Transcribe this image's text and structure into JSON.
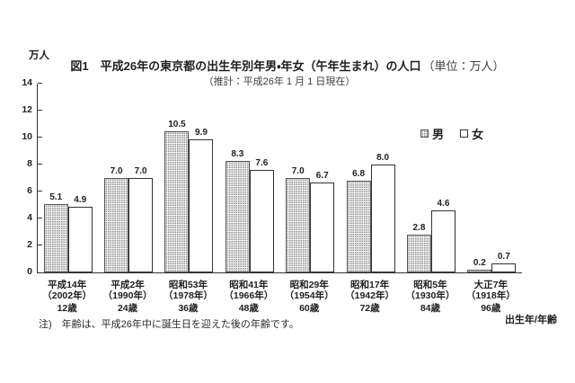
{
  "page": {
    "unit_label": "万人",
    "note": "注)　年齢は、平成26年中に誕生日を迎えた後の年齢です。",
    "x_axis_title": "出生年/年齢"
  },
  "title": {
    "figure_label": "図1",
    "main": "平成26年の東京都の出生年別年男・年女（午年生まれ）の人口",
    "unit": "（単位：万人）",
    "subtitle": "（推計：平成26年 1 月 1 日現在）"
  },
  "legend": {
    "male_label": "男",
    "female_label": "女"
  },
  "colors": {
    "text": "#1f1f1f",
    "axis": "#333333",
    "male_bar_fill": "#f3f3f3",
    "male_bar_dot": "#8f8f8f",
    "male_bar_border": "#555555",
    "female_bar_fill": "#ffffff",
    "female_bar_border": "#333333"
  },
  "chart_data": {
    "type": "bar",
    "title": "図1　平成26年の東京都の出生年別年男・年女（午年生まれ）の人口（単位：万人）",
    "subtitle": "（推計：平成26年 1 月 1 日現在）",
    "ylabel": "万人",
    "xlabel": "出生年/年齢",
    "ylim": [
      0,
      14
    ],
    "y_ticks": [
      0,
      2,
      4,
      6,
      8,
      10,
      12,
      14
    ],
    "grid": false,
    "legend_position": "upper-right",
    "value_labels": true,
    "categories": [
      {
        "era": "平成14年",
        "year": "（2002年）",
        "age": "12歳"
      },
      {
        "era": "平成2年",
        "year": "（1990年）",
        "age": "24歳"
      },
      {
        "era": "昭和53年",
        "year": "（1978年）",
        "age": "36歳"
      },
      {
        "era": "昭和41年",
        "year": "（1966年）",
        "age": "48歳"
      },
      {
        "era": "昭和29年",
        "year": "（1954年）",
        "age": "60歳"
      },
      {
        "era": "昭和17年",
        "year": "（1942年）",
        "age": "72歳"
      },
      {
        "era": "昭和5年",
        "year": "（1930年）",
        "age": "84歳"
      },
      {
        "era": "大正7年",
        "year": "（1918年）",
        "age": "96歳"
      }
    ],
    "series": [
      {
        "name": "男",
        "values": [
          5.1,
          7.0,
          10.5,
          8.3,
          7.0,
          6.8,
          2.8,
          0.2
        ]
      },
      {
        "name": "女",
        "values": [
          4.9,
          7.0,
          9.9,
          7.6,
          6.7,
          8.0,
          4.6,
          0.7
        ]
      }
    ]
  }
}
